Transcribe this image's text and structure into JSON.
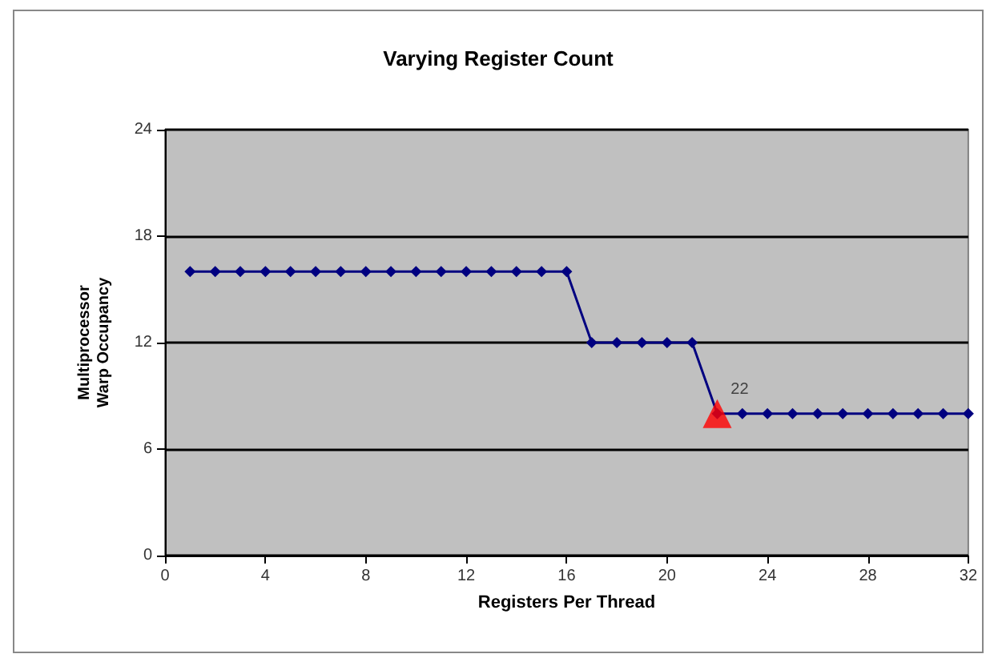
{
  "chart_data": {
    "type": "line",
    "title": "Varying Register Count",
    "xlabel": "Registers Per Thread",
    "ylabel": "Multiprocessor\nWarp Occupancy",
    "series": [
      {
        "color": "#000080",
        "marker": "diamond",
        "x": [
          1,
          2,
          3,
          4,
          5,
          6,
          7,
          8,
          9,
          10,
          11,
          12,
          13,
          14,
          15,
          16,
          17,
          18,
          19,
          20,
          21,
          22,
          23,
          24,
          25,
          26,
          27,
          28,
          29,
          30,
          31,
          32
        ],
        "values": [
          16,
          16,
          16,
          16,
          16,
          16,
          16,
          16,
          16,
          16,
          16,
          16,
          16,
          16,
          16,
          16,
          12,
          12,
          12,
          12,
          12,
          8,
          8,
          8,
          8,
          8,
          8,
          8,
          8,
          8,
          8,
          8
        ]
      },
      {
        "type": "scatter",
        "color": "#ff0000",
        "marker": "triangle",
        "x": [
          22
        ],
        "values": [
          8
        ]
      }
    ],
    "annotations": [
      {
        "text": "22",
        "x": 22,
        "y": 8
      }
    ],
    "xlim": [
      0,
      32
    ],
    "xticks": [
      0,
      4,
      8,
      12,
      16,
      20,
      24,
      28,
      32
    ],
    "ylim": [
      0,
      24
    ],
    "yticks": [
      0,
      6,
      12,
      18,
      24
    ],
    "grid": "y"
  }
}
